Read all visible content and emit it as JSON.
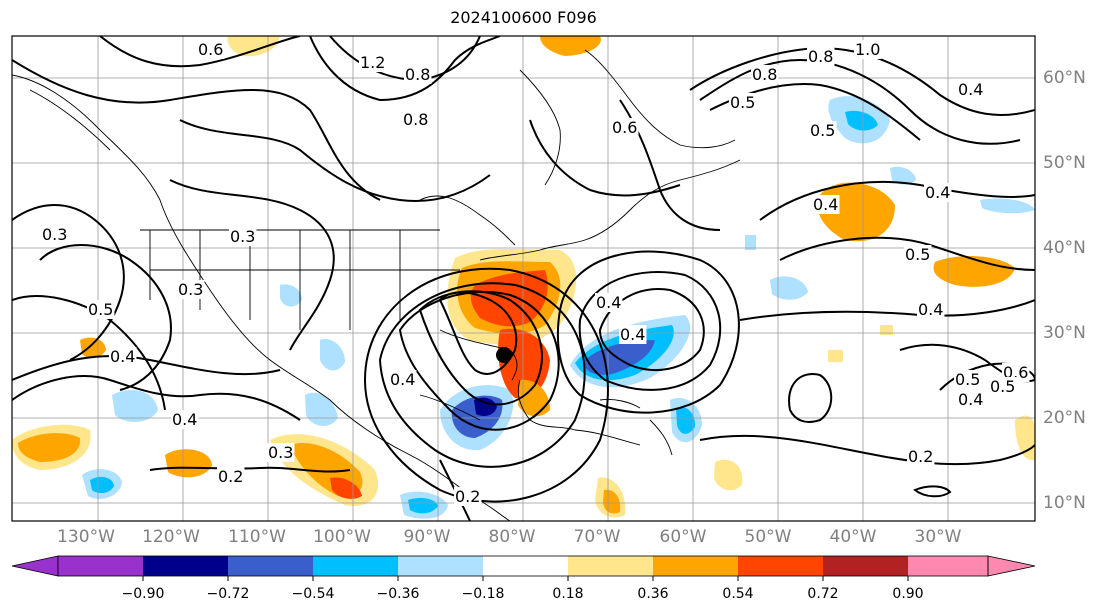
{
  "title": "2024100600 F096",
  "lon_labels": [
    "130°W",
    "120°W",
    "110°W",
    "100°W",
    "90°W",
    "80°W",
    "70°W",
    "60°W",
    "50°W",
    "40°W",
    "30°W"
  ],
  "lat_labels": [
    "60°N",
    "50°N",
    "40°N",
    "30°N",
    "20°N",
    "10°N"
  ],
  "colorbar": {
    "ticks": [
      "−0.90",
      "−0.72",
      "−0.54",
      "−0.36",
      "−0.18",
      "0.18",
      "0.36",
      "0.54",
      "0.72",
      "0.90"
    ],
    "colors": [
      "#9932cc",
      "#00008b",
      "#3a5fcd",
      "#00bfff",
      "#aee0ff",
      "#ffffff",
      "#ffe68c",
      "#ffa500",
      "#ff4500",
      "#b22222",
      "#ff88b0"
    ]
  },
  "contour_labels": [
    "0.6",
    "1.2",
    "0.8",
    "0.8",
    "0.6",
    "0.8",
    "0.8",
    "1.0",
    "0.5",
    "0.5",
    "0.4",
    "0.4",
    "0.4",
    "0.3",
    "0.3",
    "0.3",
    "0.5",
    "0.4",
    "0.4",
    "0.5",
    "0.4",
    "0.4",
    "0.5",
    "0.6",
    "0.4",
    "0.5",
    "0.4",
    "0.3",
    "0.2",
    "0.2",
    "0.2",
    "0.4"
  ],
  "shading_colors": {
    "neg_weak": "#aee0ff",
    "neg_mid": "#00bfff",
    "neg_strong": "#3a5fcd",
    "neg_max": "#00008b",
    "pos_weak": "#ffe68c",
    "pos_mid": "#ffa500",
    "pos_strong": "#ff4500",
    "pos_max": "#b22222"
  }
}
